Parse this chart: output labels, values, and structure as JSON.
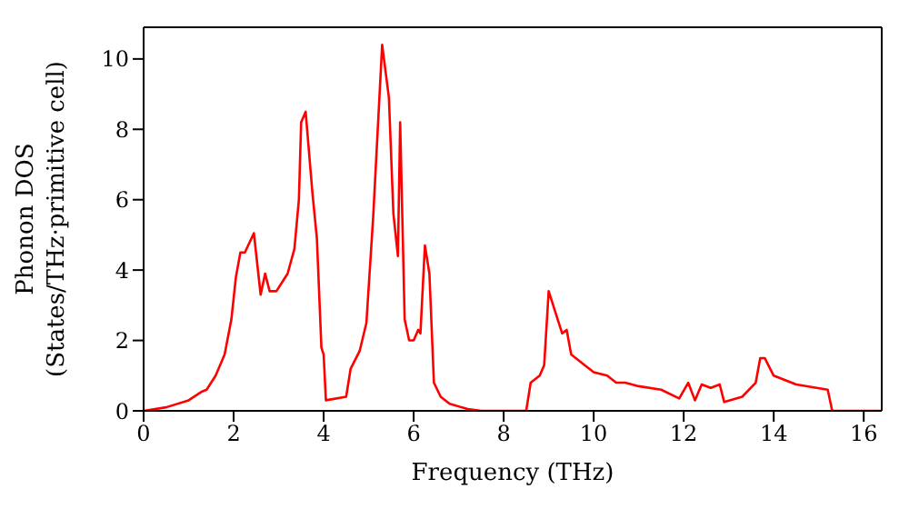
{
  "chart_data": {
    "type": "line",
    "xlabel": "Frequency (THz)",
    "ylabel": "Phonon DOS (States/THz·primitive cell)",
    "xlim": [
      0,
      16.4
    ],
    "xticks": [
      0,
      2,
      4,
      6,
      8,
      10,
      12,
      14,
      16
    ],
    "ylim": [
      0,
      10.9
    ],
    "yticks": [
      0,
      2,
      4,
      6,
      8,
      10
    ],
    "marker": "none",
    "line_style": "solid",
    "series": [
      {
        "color": "#ff0000",
        "x": [
          0,
          0.5,
          1,
          1.3,
          1.4,
          1.6,
          1.8,
          1.95,
          2.05,
          2.15,
          2.25,
          2.45,
          2.6,
          2.7,
          2.8,
          2.95,
          3.1,
          3.2,
          3.35,
          3.45,
          3.5,
          3.6,
          3.75,
          3.85,
          3.95,
          4.0,
          4.05,
          4.5,
          4.6,
          4.8,
          4.95,
          5.1,
          5.3,
          5.45,
          5.55,
          5.65,
          5.7,
          5.8,
          5.9,
          6.0,
          6.1,
          6.15,
          6.25,
          6.35,
          6.45,
          6.6,
          6.8,
          7.2,
          7.5,
          8.5,
          8.6,
          8.8,
          8.9,
          9.0,
          9.15,
          9.3,
          9.4,
          9.5,
          9.8,
          10,
          10.3,
          10.5,
          10.7,
          11,
          11.5,
          11.9,
          12.1,
          12.25,
          12.4,
          12.6,
          12.8,
          12.9,
          13.3,
          13.6,
          13.7,
          13.8,
          14.0,
          14.5,
          15.2,
          15.3,
          16.4
        ],
        "values": [
          0,
          0.1,
          0.3,
          0.55,
          0.6,
          1.0,
          1.6,
          2.6,
          3.8,
          4.5,
          4.5,
          5.05,
          3.3,
          3.9,
          3.4,
          3.4,
          3.7,
          3.9,
          4.6,
          6,
          8.2,
          8.5,
          6.2,
          4.9,
          1.8,
          1.6,
          0.3,
          0.4,
          1.2,
          1.7,
          2.5,
          5.5,
          10.4,
          8.9,
          5.6,
          4.4,
          8.2,
          2.6,
          2.0,
          2.0,
          2.3,
          2.2,
          4.7,
          3.9,
          0.8,
          0.4,
          0.2,
          0.05,
          0,
          0,
          0.8,
          1.0,
          1.3,
          3.4,
          2.8,
          2.2,
          2.3,
          1.6,
          1.3,
          1.1,
          1.0,
          0.8,
          0.8,
          0.7,
          0.6,
          0.35,
          0.8,
          0.3,
          0.75,
          0.65,
          0.75,
          0.25,
          0.4,
          0.8,
          1.5,
          1.5,
          1.0,
          0.75,
          0.6,
          0,
          0
        ]
      }
    ]
  }
}
